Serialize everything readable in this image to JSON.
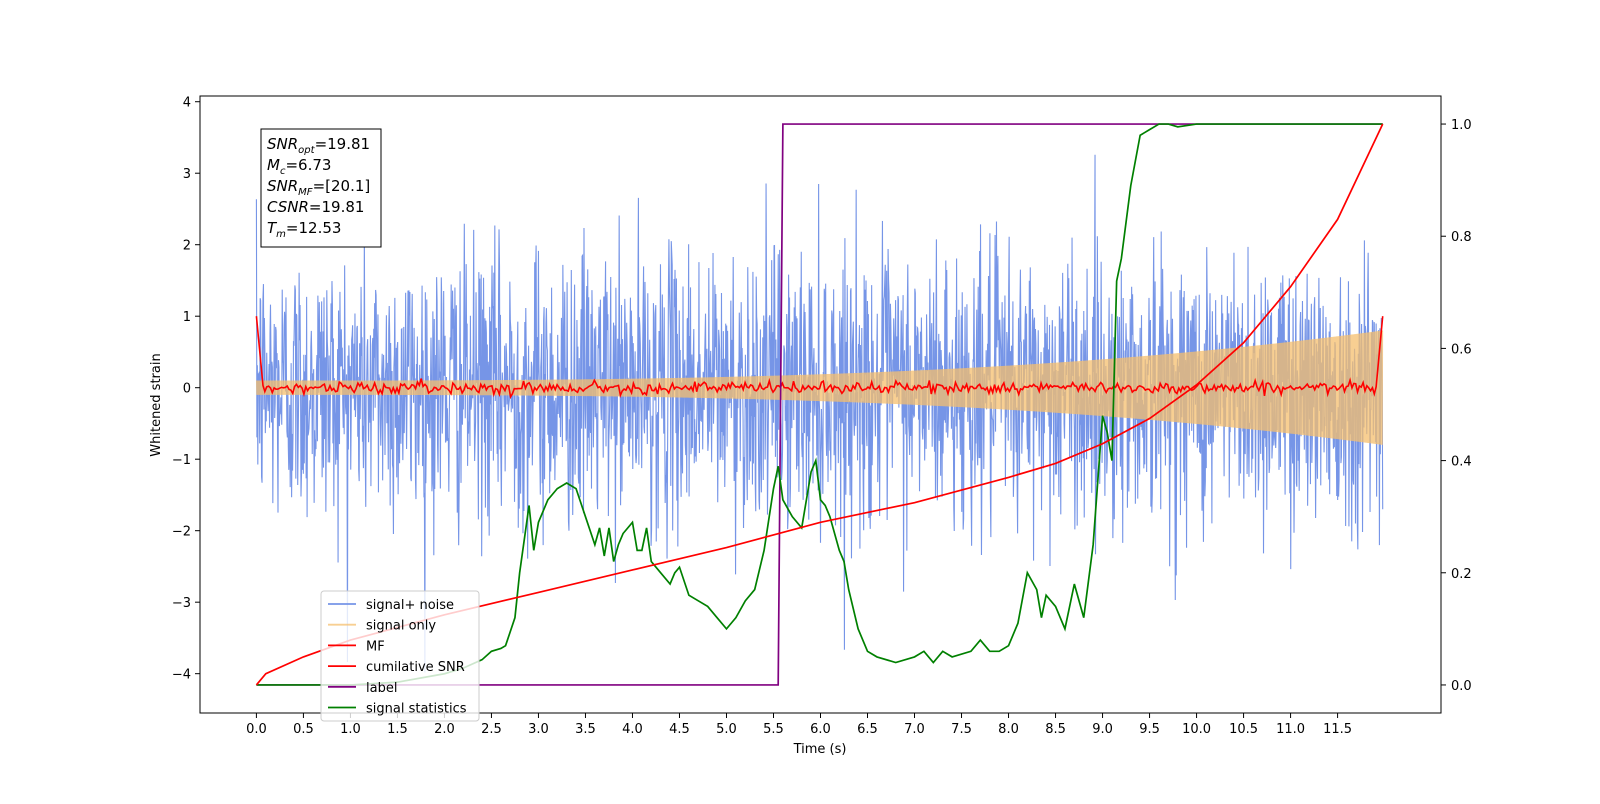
{
  "chart_data": {
    "type": "line",
    "xlabel": "Time (s)",
    "ylabel": "Whitened strain",
    "xlim": [
      -0.6,
      12.6
    ],
    "ylim_left": [
      -4.55,
      4.08
    ],
    "ylim_right": [
      -0.05,
      1.05
    ],
    "x_ticks": [
      "0.0",
      "0.5",
      "1.0",
      "1.5",
      "2.0",
      "2.5",
      "3.0",
      "3.5",
      "4.0",
      "4.5",
      "5.0",
      "5.5",
      "6.0",
      "6.5",
      "7.0",
      "7.5",
      "8.0",
      "8.5",
      "9.0",
      "9.5",
      "10.0",
      "10.5",
      "11.0",
      "11.5"
    ],
    "y_ticks_left": [
      "4",
      "3",
      "2",
      "1",
      "0",
      "−1",
      "−2",
      "−3",
      "−4"
    ],
    "y_ticks_right": [
      "1.0",
      "0.8",
      "0.6",
      "0.4",
      "0.2",
      "0.0"
    ],
    "legend_position": "lower-left",
    "annotation": {
      "lines": [
        {
          "var": "SNR",
          "sub": "opt",
          "value": "=19.81"
        },
        {
          "var": "M",
          "sub": "c",
          "value": "=6.73"
        },
        {
          "var": "SNR",
          "sub": "MF",
          "value": "=[20.1]"
        },
        {
          "var": "CSNR",
          "sub": "",
          "value": "=19.81"
        },
        {
          "var": "T",
          "sub": "m",
          "value": "=12.53"
        }
      ]
    },
    "series": [
      {
        "name": "signal+ noise",
        "color": "#6f8fe6",
        "axis": "left",
        "kind": "noise",
        "x_start": 0.0,
        "x_end": 11.98,
        "approx_amplitude_range": [
          -4.1,
          3.7
        ]
      },
      {
        "name": "signal only",
        "color": "#f5bf6e",
        "axis": "left",
        "kind": "chirp",
        "x_start": 0.0,
        "x_end": 11.98,
        "start_amplitude": 0.1,
        "end_amplitude": 0.8
      },
      {
        "name": "MF",
        "color": "#ff0000",
        "axis": "left",
        "kind": "flat-noise",
        "x_start": 0.0,
        "x_end": 11.98,
        "start_value": 1.0,
        "end_value": 1.0,
        "noise_amplitude": 0.04
      },
      {
        "name": "cumilative SNR",
        "color": "#ff0000",
        "axis": "right",
        "x": [
          0.0,
          0.1,
          0.5,
          1.0,
          2.0,
          3.0,
          4.0,
          5.0,
          6.0,
          7.0,
          8.0,
          8.5,
          9.0,
          9.5,
          10.0,
          10.5,
          11.0,
          11.5,
          11.98
        ],
        "values": [
          0.0,
          0.02,
          0.05,
          0.08,
          0.125,
          0.165,
          0.205,
          0.245,
          0.29,
          0.325,
          0.37,
          0.395,
          0.43,
          0.475,
          0.535,
          0.61,
          0.71,
          0.83,
          1.0
        ]
      },
      {
        "name": "label",
        "color": "#800080",
        "axis": "right",
        "x": [
          0.0,
          5.55,
          5.6,
          11.98
        ],
        "values": [
          0.0,
          0.0,
          1.0,
          1.0
        ]
      },
      {
        "name": "signal statistics",
        "color": "#008000",
        "axis": "right",
        "x": [
          0.0,
          1.0,
          1.5,
          2.0,
          2.2,
          2.4,
          2.5,
          2.6,
          2.65,
          2.75,
          2.8,
          2.9,
          2.95,
          3.0,
          3.05,
          3.1,
          3.2,
          3.3,
          3.4,
          3.5,
          3.6,
          3.65,
          3.7,
          3.75,
          3.8,
          3.85,
          3.9,
          4.0,
          4.05,
          4.1,
          4.15,
          4.2,
          4.3,
          4.4,
          4.45,
          4.5,
          4.6,
          4.7,
          4.8,
          4.9,
          5.0,
          5.1,
          5.2,
          5.3,
          5.4,
          5.5,
          5.55,
          5.6,
          5.7,
          5.8,
          5.9,
          5.95,
          6.0,
          6.05,
          6.1,
          6.2,
          6.25,
          6.3,
          6.4,
          6.5,
          6.6,
          6.8,
          7.0,
          7.1,
          7.2,
          7.3,
          7.4,
          7.6,
          7.7,
          7.8,
          7.9,
          8.0,
          8.1,
          8.2,
          8.3,
          8.35,
          8.4,
          8.5,
          8.6,
          8.7,
          8.8,
          8.9,
          9.0,
          9.05,
          9.1,
          9.15,
          9.2,
          9.3,
          9.4,
          9.5,
          9.6,
          9.7,
          9.8,
          10.0,
          10.2,
          10.3,
          10.5,
          11.0,
          11.5,
          11.98
        ],
        "values": [
          0.0,
          0.0,
          0.005,
          0.02,
          0.03,
          0.045,
          0.06,
          0.065,
          0.07,
          0.12,
          0.2,
          0.32,
          0.24,
          0.29,
          0.31,
          0.33,
          0.35,
          0.36,
          0.35,
          0.3,
          0.25,
          0.28,
          0.23,
          0.28,
          0.22,
          0.25,
          0.27,
          0.29,
          0.24,
          0.24,
          0.28,
          0.22,
          0.2,
          0.18,
          0.2,
          0.21,
          0.16,
          0.15,
          0.14,
          0.12,
          0.1,
          0.12,
          0.15,
          0.17,
          0.24,
          0.35,
          0.39,
          0.33,
          0.3,
          0.28,
          0.38,
          0.4,
          0.33,
          0.32,
          0.3,
          0.24,
          0.22,
          0.17,
          0.1,
          0.06,
          0.05,
          0.04,
          0.05,
          0.06,
          0.04,
          0.06,
          0.05,
          0.06,
          0.08,
          0.06,
          0.06,
          0.07,
          0.11,
          0.2,
          0.17,
          0.12,
          0.16,
          0.14,
          0.1,
          0.18,
          0.12,
          0.25,
          0.48,
          0.45,
          0.4,
          0.72,
          0.76,
          0.89,
          0.98,
          0.99,
          1.0,
          1.0,
          0.995,
          1.0,
          1.0,
          1.0,
          1.0,
          1.0,
          1.0,
          1.0
        ]
      }
    ]
  }
}
